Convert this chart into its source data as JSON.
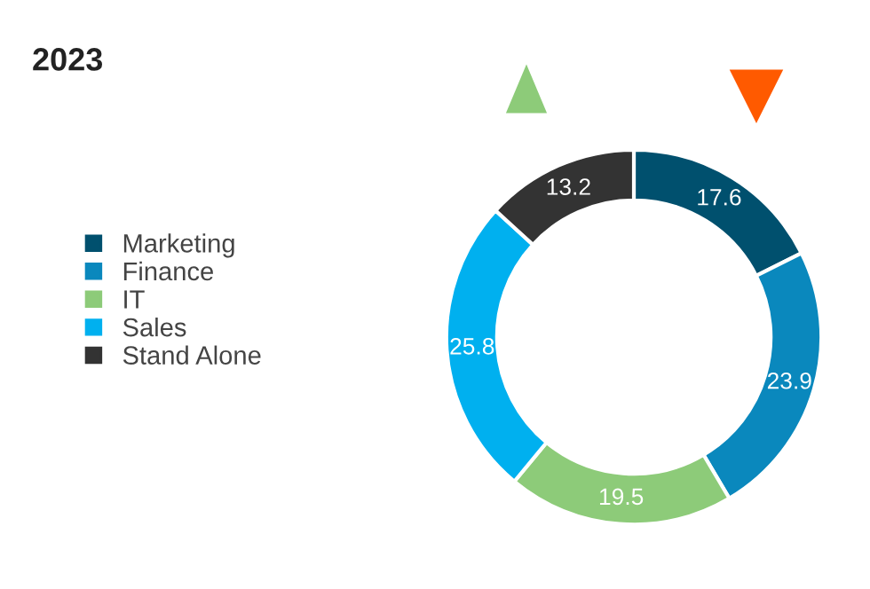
{
  "chart_data": {
    "type": "donut",
    "title": "2023",
    "categories": [
      "Marketing",
      "Finance",
      "IT",
      "Sales",
      "Stand Alone"
    ],
    "values": [
      17.6,
      23.9,
      19.5,
      25.8,
      13.2
    ],
    "colors": [
      "#00506e",
      "#0a88bd",
      "#8dcb79",
      "#00b0ef",
      "#333333"
    ],
    "data_labels": true,
    "legend": "left"
  }
}
